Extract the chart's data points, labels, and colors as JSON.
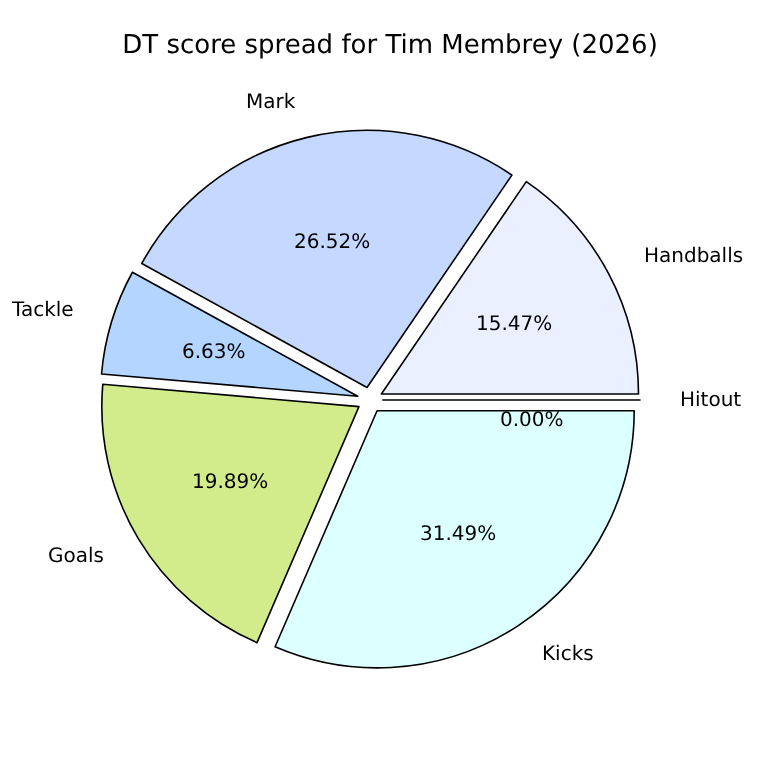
{
  "chart_data": {
    "type": "pie",
    "title": "DT score spread for Tim Membrey (2026)",
    "categories": [
      "Hitout",
      "Handballs",
      "Mark",
      "Tackle",
      "Goals",
      "Kicks"
    ],
    "values": [
      0,
      15.47,
      26.52,
      6.63,
      19.89,
      31.49
    ],
    "value_labels": [
      "0.00%",
      "15.47%",
      "26.52%",
      "6.63%",
      "19.89%",
      "31.49%"
    ],
    "colors": [
      "#ffffff",
      "#eaf0ff",
      "#c5d8ff",
      "#b3d5ff",
      "#d2ec8c",
      "#dcffff"
    ],
    "legend": false
  }
}
